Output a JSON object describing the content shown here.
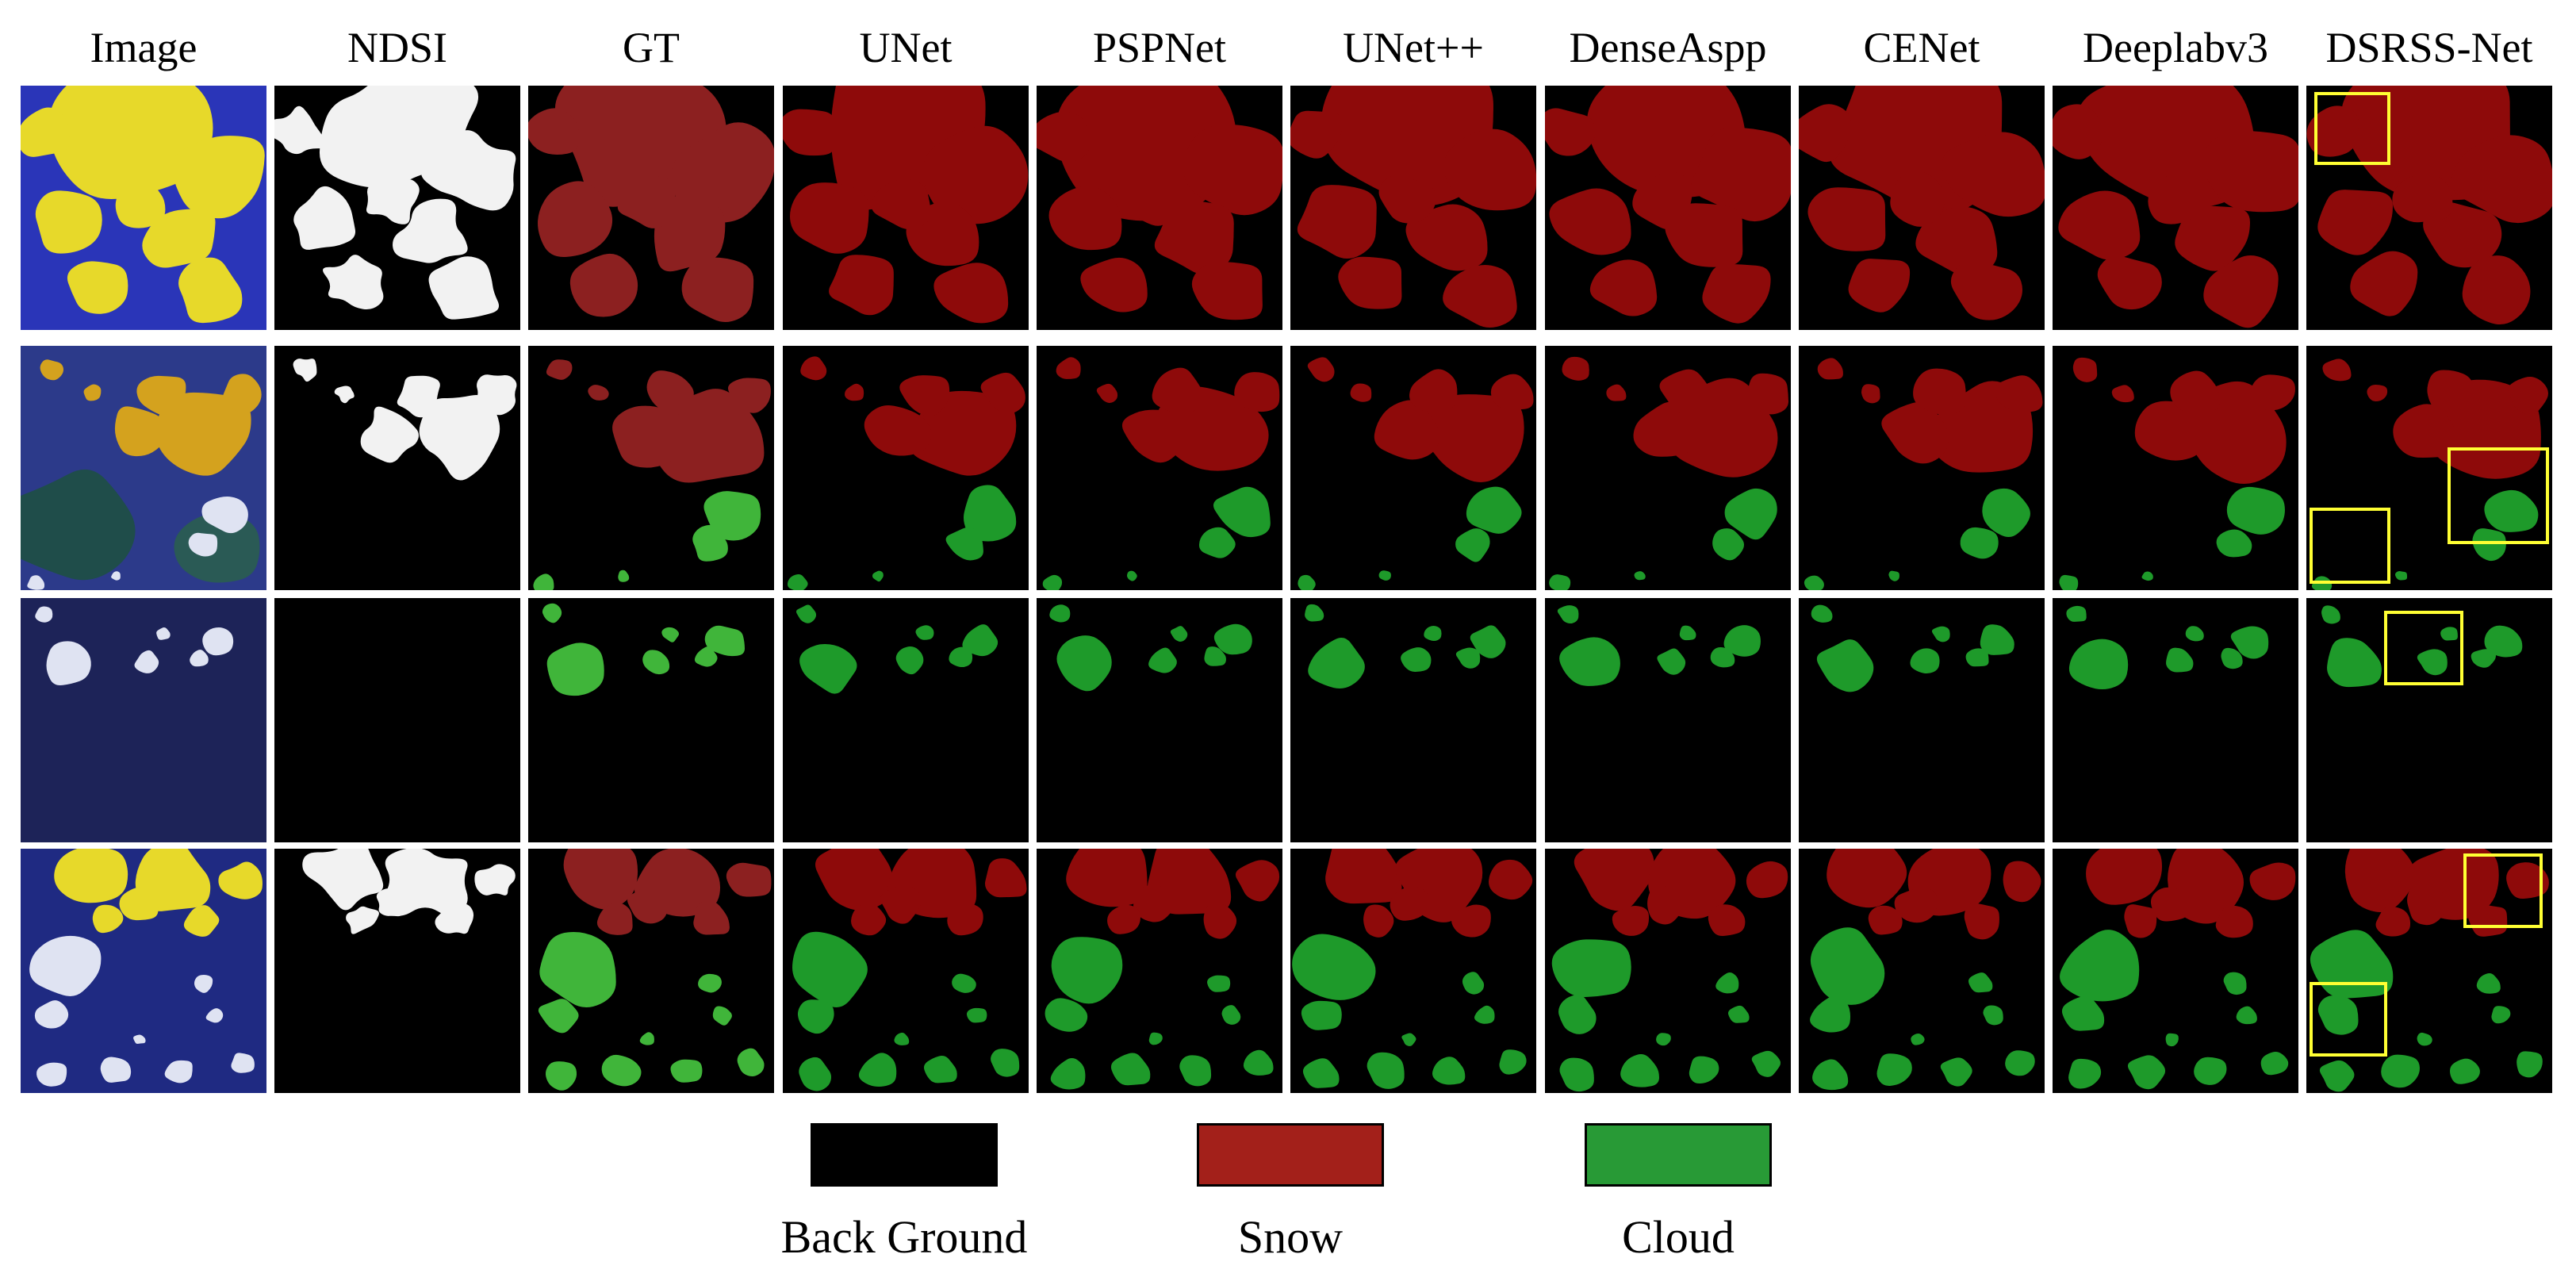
{
  "colors": {
    "background_class": "#000000",
    "snow_class": "#8e0a0a",
    "snow_gt": "#8c2020",
    "cloud_class": "#1e9a2a",
    "cloud_gt": "#40b53a",
    "highlight_box": "#ffff33"
  },
  "columns": [
    {
      "id": "image",
      "label": "Image"
    },
    {
      "id": "ndsi",
      "label": "NDSI"
    },
    {
      "id": "gt",
      "label": "GT"
    },
    {
      "id": "unet",
      "label": "UNet"
    },
    {
      "id": "pspnet",
      "label": "PSPNet"
    },
    {
      "id": "unetpp",
      "label": "UNet++"
    },
    {
      "id": "denseaspp",
      "label": "DenseAspp"
    },
    {
      "id": "cenet",
      "label": "CENet"
    },
    {
      "id": "deeplabv3",
      "label": "Deeplabv3"
    },
    {
      "id": "dsrss",
      "label": "DSRSS-Net"
    }
  ],
  "rows": [
    {
      "id": "sample-1",
      "has_snow": true,
      "has_cloud": false
    },
    {
      "id": "sample-2",
      "has_snow": true,
      "has_cloud": true
    },
    {
      "id": "sample-3",
      "has_snow": false,
      "has_cloud": true
    },
    {
      "id": "sample-4",
      "has_snow": true,
      "has_cloud": true
    }
  ],
  "legend": [
    {
      "label": "Back Ground",
      "color": "#000000"
    },
    {
      "label": "Snow",
      "color": "#a3201a"
    },
    {
      "label": "Cloud",
      "color": "#289a36"
    }
  ]
}
